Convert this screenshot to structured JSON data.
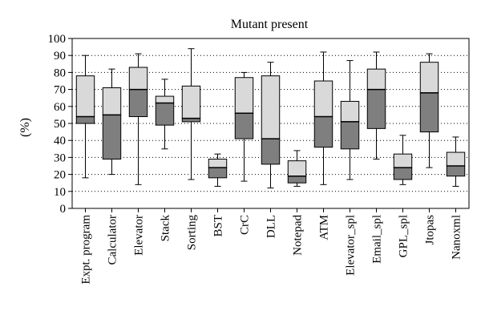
{
  "chart_data": {
    "type": "box",
    "title": "Mutant present",
    "ylabel": "(%)",
    "xlabel": "",
    "ylim": [
      0,
      100
    ],
    "yticks": [
      0,
      10,
      20,
      30,
      40,
      50,
      60,
      70,
      80,
      90,
      100
    ],
    "grid": "dotted horizontal",
    "categories": [
      "Expt. program",
      "Calculator",
      "Elevator",
      "Stack",
      "Sorting",
      "BST",
      "CrC",
      "DLL",
      "Notepad",
      "ATM",
      "Elevator_spl",
      "Email_spl",
      "GPL_spl",
      "Jtopas",
      "Nanoxml"
    ],
    "boxes": [
      {
        "min": 18,
        "q1": 50,
        "median": 54,
        "q3": 78,
        "max": 90
      },
      {
        "min": 20,
        "q1": 29,
        "median": 55,
        "q3": 71,
        "max": 82
      },
      {
        "min": 14,
        "q1": 54,
        "median": 70,
        "q3": 83,
        "max": 91
      },
      {
        "min": 35,
        "q1": 49,
        "median": 62,
        "q3": 66,
        "max": 76
      },
      {
        "min": 17,
        "q1": 51,
        "median": 53,
        "q3": 72,
        "max": 94
      },
      {
        "min": 13,
        "q1": 18,
        "median": 24,
        "q3": 29,
        "max": 32
      },
      {
        "min": 16,
        "q1": 41,
        "median": 56,
        "q3": 77,
        "max": 80
      },
      {
        "min": 12,
        "q1": 26,
        "median": 41,
        "q3": 78,
        "max": 86
      },
      {
        "min": 13,
        "q1": 15,
        "median": 19,
        "q3": 28,
        "max": 34
      },
      {
        "min": 14,
        "q1": 36,
        "median": 54,
        "q3": 75,
        "max": 92
      },
      {
        "min": 17,
        "q1": 35,
        "median": 51,
        "q3": 63,
        "max": 87
      },
      {
        "min": 29,
        "q1": 47,
        "median": 70,
        "q3": 82,
        "max": 92
      },
      {
        "min": 14,
        "q1": 17,
        "median": 24,
        "q3": 32,
        "max": 43
      },
      {
        "min": 24,
        "q1": 45,
        "median": 68,
        "q3": 86,
        "max": 91
      },
      {
        "min": 13,
        "q1": 19,
        "median": 25,
        "q3": 33,
        "max": 42
      }
    ],
    "colors": {
      "upper_box": "#d9d9d9",
      "lower_box": "#7f7f7f",
      "outline": "#000000",
      "grid": "#000000"
    }
  }
}
